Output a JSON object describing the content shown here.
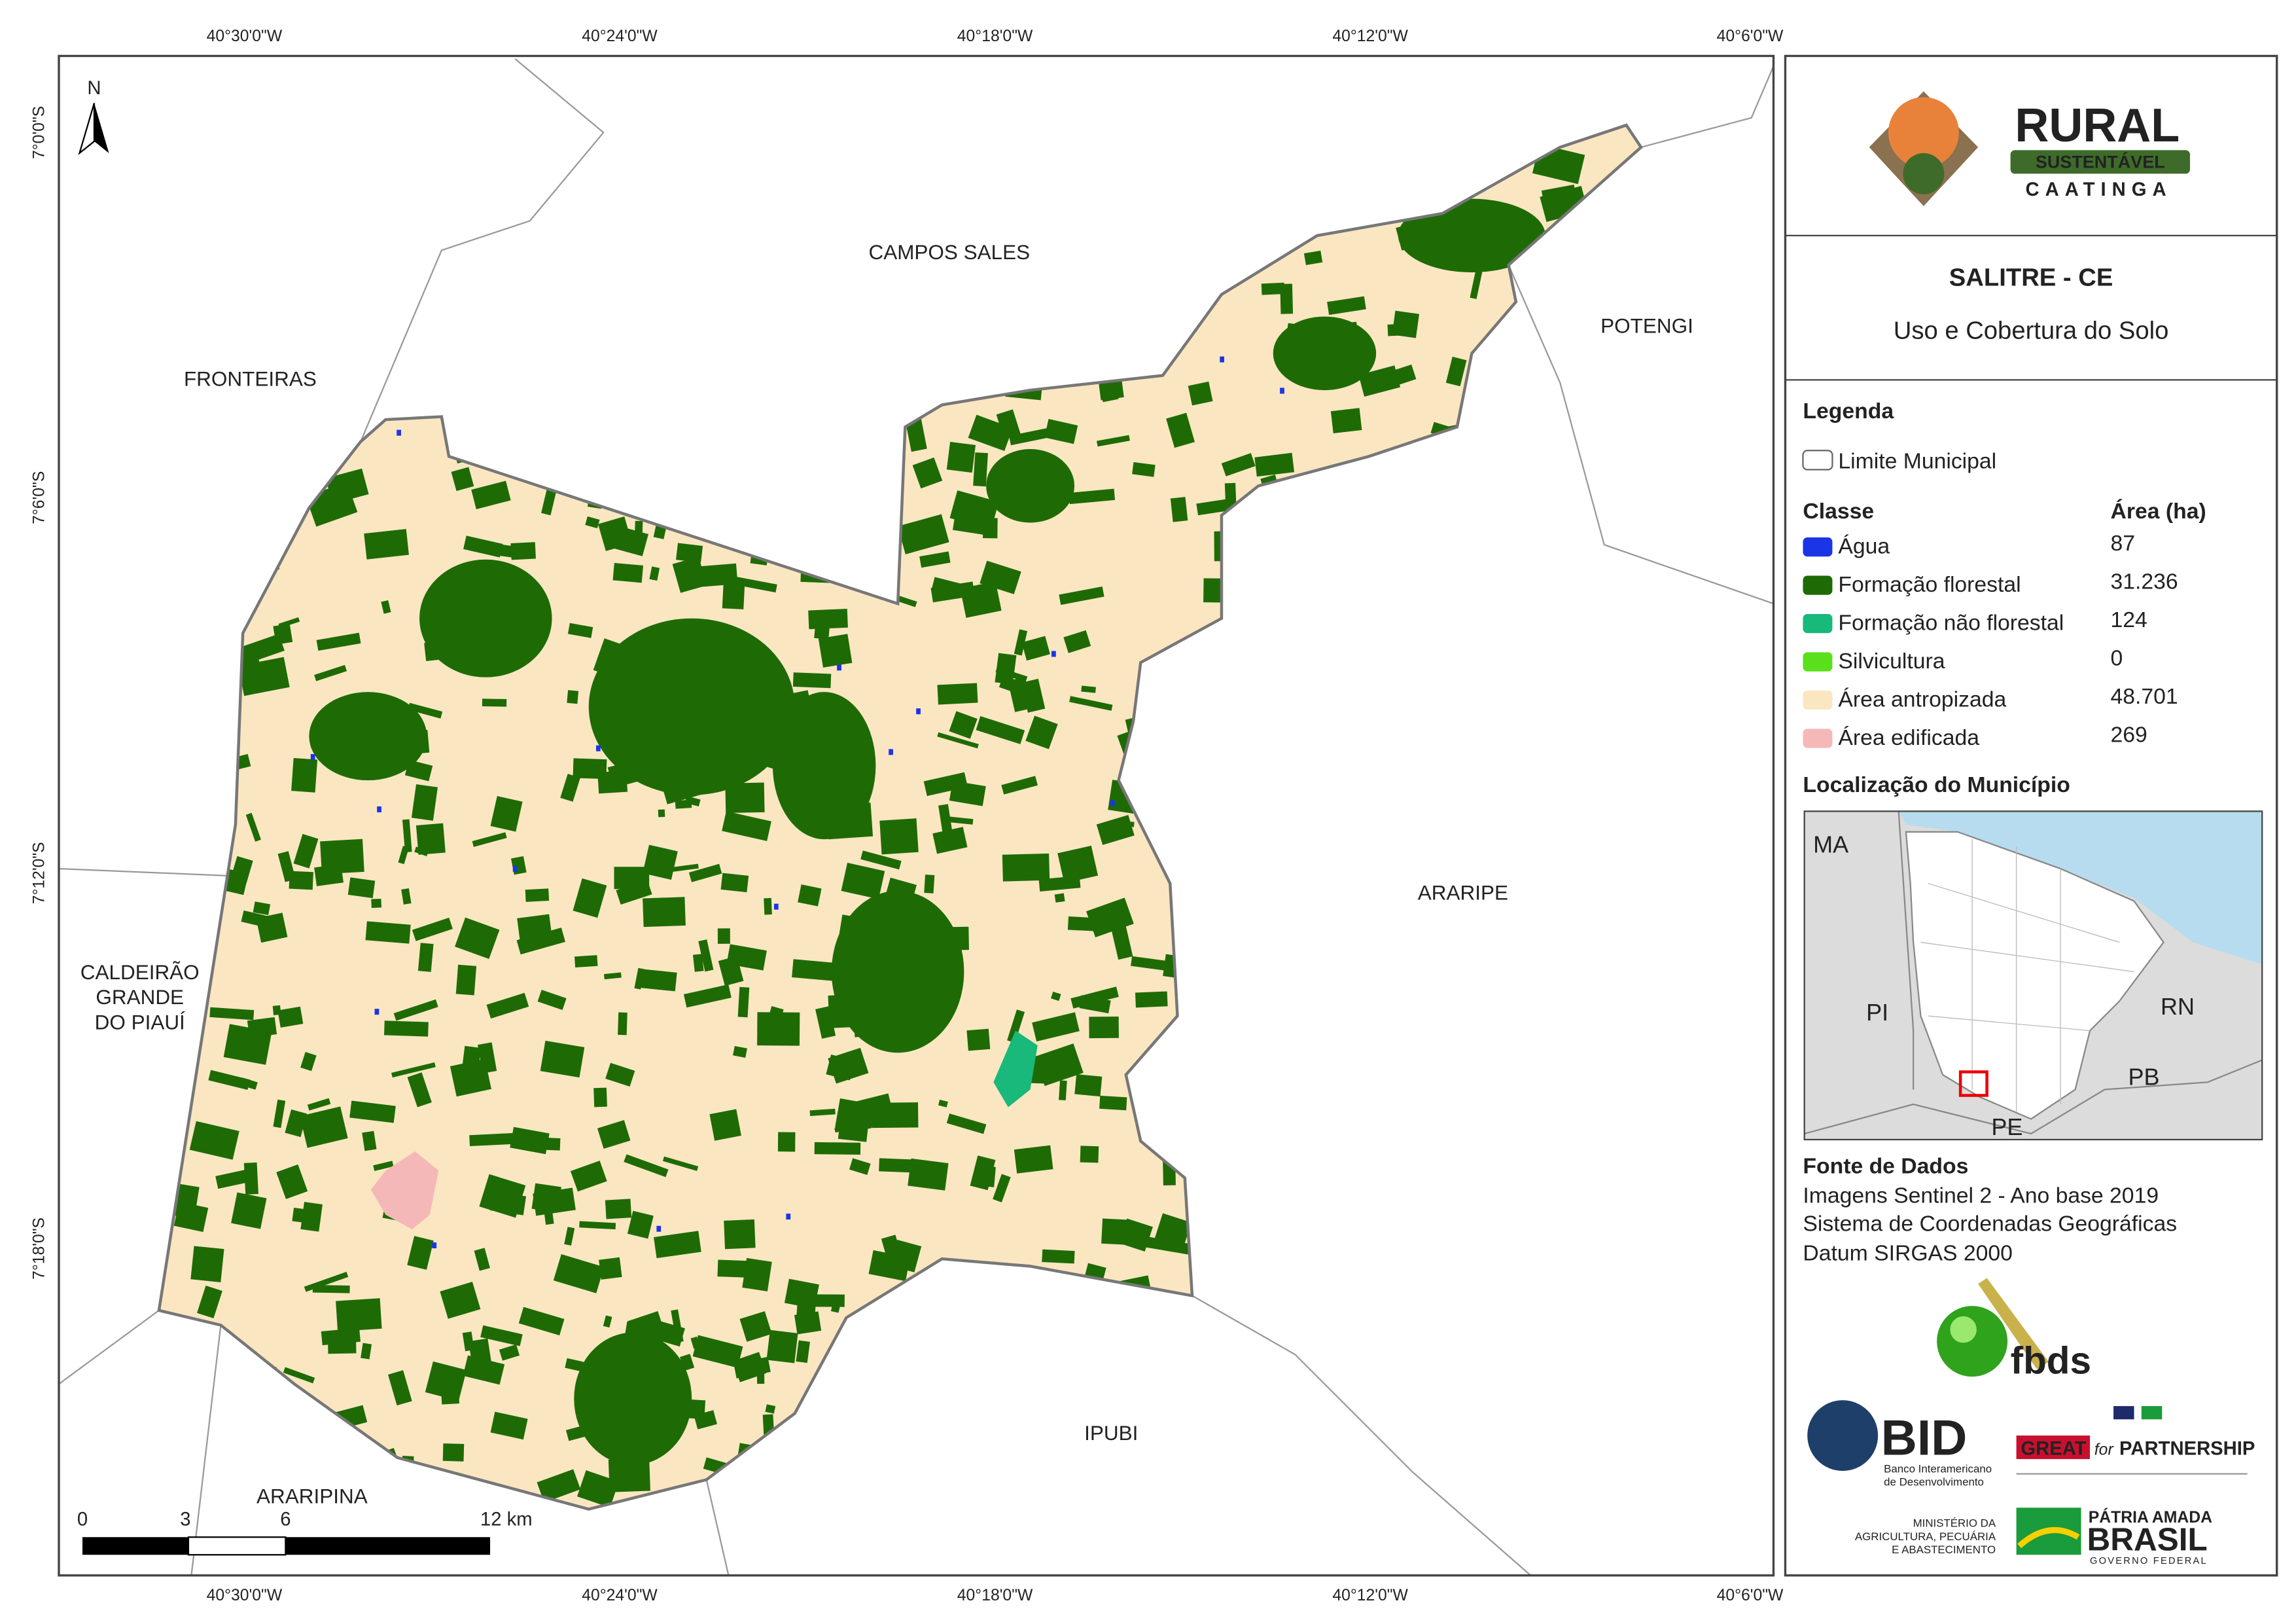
{
  "map": {
    "coords": {
      "top": [
        "40°30'0\"W",
        "40°24'0\"W",
        "40°18'0\"W",
        "40°12'0\"W",
        "40°6'0\"W"
      ],
      "bottom": [
        "40°30'0\"W",
        "40°24'0\"W",
        "40°18'0\"W",
        "40°12'0\"W",
        "40°6'0\"W"
      ],
      "left": [
        "7°0'0\"S",
        "7°6'0\"S",
        "7°12'0\"S",
        "7°18'0\"S"
      ]
    },
    "places": {
      "campos_sales": "CAMPOS SALES",
      "fronteiras": "FRONTEIRAS",
      "potengi": "POTENGI",
      "araripe": "ARARIPE",
      "caldeirao": [
        "CALDEIRÃO",
        "GRANDE",
        "DO PIAUÍ"
      ],
      "ipubi": "IPUBI",
      "araripina": "ARARIPINA"
    },
    "north": "N",
    "scale": [
      "0",
      "3",
      "6",
      "12 km"
    ]
  },
  "panel": {
    "logo": {
      "rural": "RURAL",
      "sustentavel": "SUSTENTÁVEL",
      "caatinga": "CAATINGA"
    },
    "title": "SALITRE - CE",
    "subtitle": "Uso e Cobertura do Solo",
    "legend": {
      "title": "Legenda",
      "boundary": "Limite Municipal",
      "class_header": "Classe",
      "area_header": "Área (ha)",
      "rows": [
        {
          "name": "Água",
          "area": "87",
          "color": "#1b35e6"
        },
        {
          "name": "Formação florestal",
          "area": "31.236",
          "color": "#1e6b06"
        },
        {
          "name": "Formação não florestal",
          "area": "124",
          "color": "#19b87b"
        },
        {
          "name": "Silvicultura",
          "area": "0",
          "color": "#5ae01a"
        },
        {
          "name": "Área antropizada",
          "area": "48.701",
          "color": "#fbe6c2"
        },
        {
          "name": "Área edificada",
          "area": "269",
          "color": "#f5b8b8"
        }
      ]
    },
    "location": {
      "title": "Localização do Município",
      "labels": [
        "MA",
        "PI",
        "RN",
        "PB",
        "PE"
      ]
    },
    "sources": {
      "title": "Fonte de Dados",
      "lines": [
        "Imagens Sentinel 2 - Ano base 2019",
        "Sistema de Coordenadas Geográficas",
        "Datum SIRGAS 2000"
      ]
    },
    "partners": {
      "fbds": "fbds",
      "bid": "BID",
      "bid_name": [
        "Banco Interamericano",
        "de Desenvolvimento"
      ],
      "great": "GREAT",
      "for": "for",
      "partnership": "PARTNERSHIP",
      "ministry": [
        "MINISTÉRIO DA",
        "AGRICULTURA, PECUÁRIA",
        "E ABASTECIMENTO"
      ],
      "patria": "PÁTRIA AMADA",
      "brasil": "BRASIL",
      "gov": "GOVERNO FEDERAL"
    }
  }
}
